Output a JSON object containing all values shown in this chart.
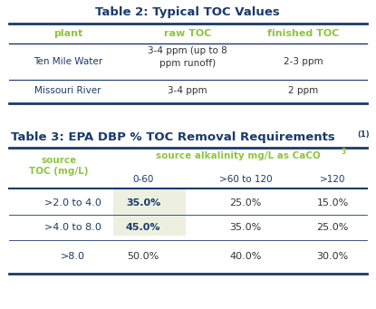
{
  "title1": "Table 2: Typical TOC Values",
  "title2": "Table 3: EPA DBP % TOC Removal Requirements",
  "title2_superscript": "(1)",
  "table1_headers": [
    "plant",
    "raw TOC",
    "finished TOC"
  ],
  "table1_rows": [
    [
      "Ten Mile Water",
      "3-4 ppm (up to 8\nppm runoff)",
      "2-3 ppm"
    ],
    [
      "Missouri River",
      "3-4 ppm",
      "2 ppm"
    ]
  ],
  "table2_subheaders": [
    "0-60",
    ">60 to 120",
    ">120"
  ],
  "table2_rows": [
    [
      ">2.0 to 4.0",
      "35.0%",
      "25.0%",
      "15.0%"
    ],
    [
      ">4.0 to 8.0",
      "45.0%",
      "35.0%",
      "25.0%"
    ],
    [
      ">8.0",
      "50.0%",
      "40.0%",
      "30.0%"
    ]
  ],
  "color_green": "#8dc63f",
  "color_navy": "#1b3a6b",
  "color_dark": "#333333",
  "color_highlight": "#edf0e0",
  "color_bg": "#ffffff",
  "color_line": "#1b3a6b"
}
